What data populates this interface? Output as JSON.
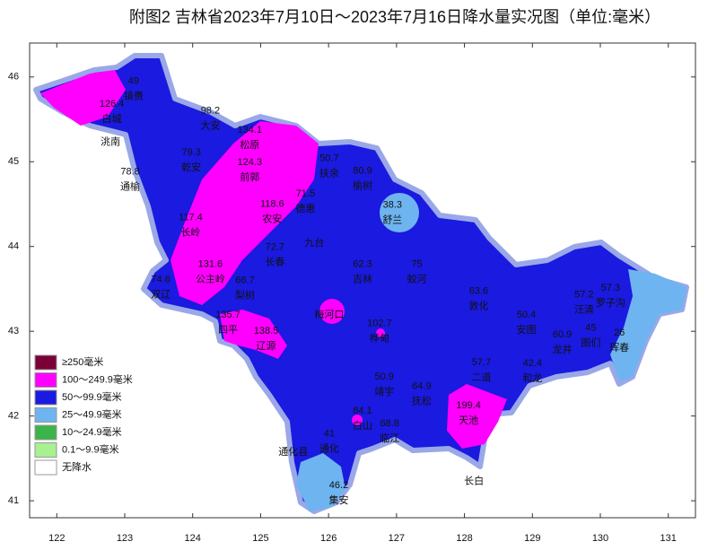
{
  "chart_data": {
    "type": "map",
    "title": "附图2  吉林省2023年7月10日～2023年7月16日降水量实况图（单位:毫米）",
    "xlim": [
      121.6,
      131.4
    ],
    "ylim": [
      40.8,
      46.4
    ],
    "xticks": [
      122,
      123,
      124,
      125,
      126,
      127,
      128,
      129,
      130,
      131
    ],
    "yticks": [
      41,
      42,
      43,
      44,
      45,
      46
    ],
    "legend": [
      {
        "label": "≥250毫米",
        "color": "#7a0038"
      },
      {
        "label": "100～249.9毫米",
        "color": "#ff00ff"
      },
      {
        "label": "50～99.9毫米",
        "color": "#1a1ae0"
      },
      {
        "label": "25～49.9毫米",
        "color": "#6eb4f0"
      },
      {
        "label": "10～24.9毫米",
        "color": "#3cb44a"
      },
      {
        "label": "0.1～9.9毫米",
        "color": "#a8f090"
      },
      {
        "label": "无降水",
        "color": "#ffffff"
      }
    ],
    "stations": [
      {
        "name": "白城",
        "value": 126.4,
        "lon": 122.81,
        "lat": 45.68
      },
      {
        "name": "镇赉",
        "value": 49,
        "lon": 123.13,
        "lat": 45.95
      },
      {
        "name": "洮南",
        "lon": 122.79,
        "lat": 45.23
      },
      {
        "name": "大安",
        "value": 98.2,
        "lon": 124.26,
        "lat": 45.6
      },
      {
        "name": "乾安",
        "value": 79.3,
        "lon": 123.98,
        "lat": 45.11
      },
      {
        "name": "通榆",
        "value": 78.8,
        "lon": 123.08,
        "lat": 44.88
      },
      {
        "name": "松原",
        "value": 134.1,
        "lon": 124.84,
        "lat": 45.37
      },
      {
        "name": "前郭",
        "value": 124.3,
        "lon": 124.84,
        "lat": 44.99
      },
      {
        "name": "扶余",
        "value": 50.7,
        "lon": 126.01,
        "lat": 45.04
      },
      {
        "name": "榆树",
        "value": 80.9,
        "lon": 126.5,
        "lat": 44.89
      },
      {
        "name": "德惠",
        "value": 71.5,
        "lon": 125.66,
        "lat": 44.62
      },
      {
        "name": "舒兰",
        "value": 38.3,
        "lon": 126.94,
        "lat": 44.49
      },
      {
        "name": "长岭",
        "value": 117.4,
        "lon": 123.97,
        "lat": 44.34
      },
      {
        "name": "农安",
        "value": 118.6,
        "lon": 125.17,
        "lat": 44.5
      },
      {
        "name": "长春",
        "value": 72.7,
        "lon": 125.21,
        "lat": 43.99
      },
      {
        "name": "九台",
        "lon": 125.79,
        "lat": 44.04
      },
      {
        "name": "双辽",
        "value": 74.6,
        "lon": 123.53,
        "lat": 43.61
      },
      {
        "name": "公主岭",
        "value": 131.6,
        "lon": 124.26,
        "lat": 43.79
      },
      {
        "name": "梨树",
        "value": 66.7,
        "lon": 124.77,
        "lat": 43.6
      },
      {
        "name": "吉林",
        "value": 62.3,
        "lon": 126.5,
        "lat": 43.79
      },
      {
        "name": "蛟河",
        "value": 75,
        "lon": 127.3,
        "lat": 43.79
      },
      {
        "name": "敦化",
        "value": 63.6,
        "lon": 128.21,
        "lat": 43.47
      },
      {
        "name": "汪清",
        "value": 57.2,
        "lon": 129.76,
        "lat": 43.43
      },
      {
        "name": "罗子沟",
        "value": 57.3,
        "lon": 130.15,
        "lat": 43.51
      },
      {
        "name": "四平",
        "value": 135.7,
        "lon": 124.52,
        "lat": 43.19
      },
      {
        "name": "辽源",
        "value": 138.5,
        "lon": 125.08,
        "lat": 43.0
      },
      {
        "name": "梅河口",
        "lon": 126.01,
        "lat": 43.19
      },
      {
        "name": "桦甸",
        "value": 102.7,
        "lon": 126.75,
        "lat": 43.09
      },
      {
        "name": "安图",
        "value": 50.4,
        "lon": 128.91,
        "lat": 43.19
      },
      {
        "name": "龙井",
        "value": 60.9,
        "lon": 129.44,
        "lat": 42.96
      },
      {
        "name": "图们",
        "value": 45,
        "lon": 129.86,
        "lat": 43.04
      },
      {
        "name": "珲春",
        "value": 26,
        "lon": 130.28,
        "lat": 42.98
      },
      {
        "name": "二道",
        "value": 57.7,
        "lon": 128.25,
        "lat": 42.63
      },
      {
        "name": "和龙",
        "value": 42.4,
        "lon": 129.0,
        "lat": 42.62
      },
      {
        "name": "靖宇",
        "value": 50.9,
        "lon": 126.82,
        "lat": 42.46
      },
      {
        "name": "抚松",
        "value": 64.9,
        "lon": 127.37,
        "lat": 42.35
      },
      {
        "name": "天池",
        "value": 199.4,
        "lon": 128.06,
        "lat": 42.12
      },
      {
        "name": "白山",
        "value": 84.1,
        "lon": 126.5,
        "lat": 42.06
      },
      {
        "name": "临江",
        "value": 68.8,
        "lon": 126.9,
        "lat": 41.91
      },
      {
        "name": "通化",
        "value": 41,
        "lon": 126.01,
        "lat": 41.79
      },
      {
        "name": "通化县",
        "lon": 125.48,
        "lat": 41.57
      },
      {
        "name": "集安",
        "value": 46.2,
        "lon": 126.15,
        "lat": 41.18
      },
      {
        "name": "长白",
        "lon": 128.14,
        "lat": 41.23
      }
    ]
  }
}
